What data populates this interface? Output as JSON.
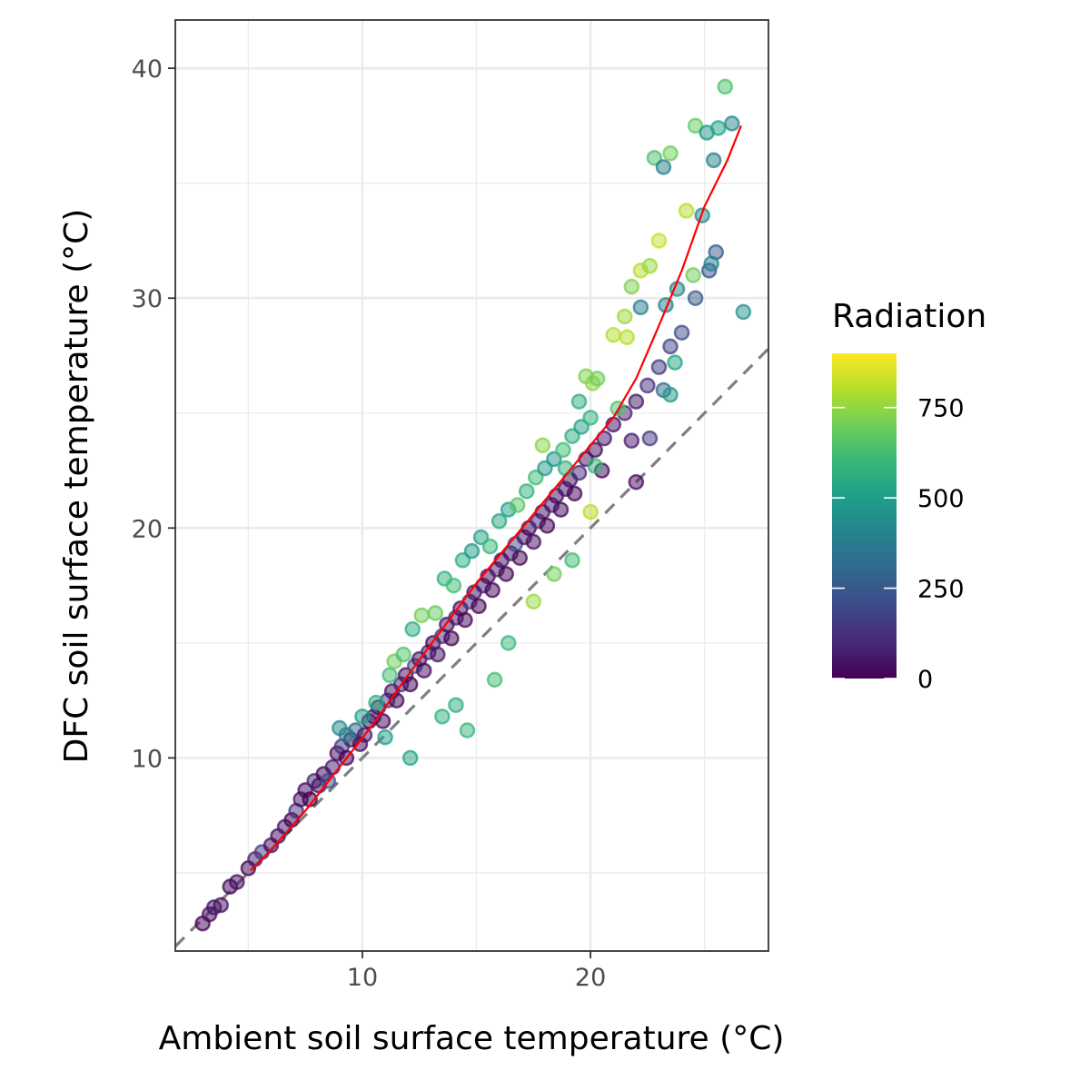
{
  "chart_data": {
    "type": "scatter",
    "title": "",
    "xlabel": "Ambient soil surface temperature (°C)",
    "ylabel": "DFC soil surface temperature (°C)",
    "xlim": [
      1.8,
      27.8
    ],
    "ylim": [
      1.6,
      42.1
    ],
    "x_ticks": [
      10,
      20
    ],
    "y_ticks": [
      10,
      20,
      30,
      40
    ],
    "grid": true,
    "reference_line": {
      "type": "y = x",
      "style": "dashed",
      "color": "#808080"
    },
    "fit_line": {
      "color": "#ff0000",
      "points": [
        [
          5.1,
          5.1
        ],
        [
          6.0,
          6.0
        ],
        [
          7.5,
          7.7
        ],
        [
          9.0,
          9.6
        ],
        [
          10.5,
          11.5
        ],
        [
          12.0,
          13.6
        ],
        [
          13.5,
          15.6
        ],
        [
          15.0,
          17.6
        ],
        [
          16.5,
          19.4
        ],
        [
          18.0,
          21.2
        ],
        [
          19.5,
          23.0
        ],
        [
          21.0,
          24.8
        ],
        [
          22.0,
          26.5
        ],
        [
          23.0,
          28.8
        ],
        [
          24.0,
          31.2
        ],
        [
          25.0,
          34.0
        ],
        [
          26.0,
          36.0
        ],
        [
          26.6,
          37.5
        ]
      ]
    },
    "legend": {
      "title": "Radiation",
      "position": "right",
      "type": "colorbar",
      "range": [
        0,
        900
      ],
      "ticks": [
        "0",
        "250",
        "500",
        "750"
      ],
      "tick_values": [
        0,
        250,
        500,
        750
      ],
      "colormap": "viridis"
    },
    "points": [
      [
        3.0,
        2.8,
        0
      ],
      [
        3.3,
        3.2,
        20
      ],
      [
        3.5,
        3.5,
        60
      ],
      [
        3.8,
        3.6,
        40
      ],
      [
        4.2,
        4.4,
        10
      ],
      [
        4.5,
        4.6,
        30
      ],
      [
        5.0,
        5.2,
        0
      ],
      [
        5.3,
        5.6,
        80
      ],
      [
        5.6,
        5.9,
        150
      ],
      [
        6.0,
        6.2,
        40
      ],
      [
        6.3,
        6.6,
        20
      ],
      [
        6.6,
        7.0,
        60
      ],
      [
        6.9,
        7.3,
        0
      ],
      [
        7.1,
        7.7,
        120
      ],
      [
        7.3,
        8.2,
        40
      ],
      [
        7.5,
        8.6,
        20
      ],
      [
        7.7,
        8.2,
        0
      ],
      [
        7.9,
        9.0,
        90
      ],
      [
        8.1,
        8.8,
        30
      ],
      [
        8.3,
        9.3,
        10
      ],
      [
        8.5,
        9.0,
        200
      ],
      [
        8.7,
        9.6,
        60
      ],
      [
        8.9,
        10.2,
        20
      ],
      [
        9.1,
        10.5,
        130
      ],
      [
        9.3,
        10.0,
        0
      ],
      [
        9.5,
        10.8,
        50
      ],
      [
        9.7,
        11.2,
        300
      ],
      [
        9.9,
        10.6,
        20
      ],
      [
        10.1,
        11.0,
        60
      ],
      [
        10.3,
        11.6,
        10
      ],
      [
        10.5,
        11.8,
        80
      ],
      [
        10.7,
        12.2,
        30
      ],
      [
        10.9,
        11.6,
        0
      ],
      [
        11.1,
        12.5,
        160
      ],
      [
        11.3,
        12.9,
        40
      ],
      [
        11.5,
        12.5,
        10
      ],
      [
        11.7,
        13.2,
        100
      ],
      [
        11.9,
        13.6,
        30
      ],
      [
        12.1,
        13.2,
        0
      ],
      [
        12.3,
        14.0,
        220
      ],
      [
        12.5,
        14.3,
        50
      ],
      [
        12.7,
        13.8,
        20
      ],
      [
        12.9,
        14.6,
        80
      ],
      [
        13.1,
        15.0,
        10
      ],
      [
        13.3,
        14.5,
        40
      ],
      [
        13.5,
        15.3,
        120
      ],
      [
        13.7,
        15.8,
        30
      ],
      [
        13.9,
        15.2,
        0
      ],
      [
        14.1,
        16.1,
        70
      ],
      [
        14.3,
        16.5,
        20
      ],
      [
        14.5,
        16.0,
        10
      ],
      [
        14.7,
        16.8,
        140
      ],
      [
        14.9,
        17.2,
        40
      ],
      [
        15.1,
        16.6,
        0
      ],
      [
        15.3,
        17.5,
        60
      ],
      [
        15.5,
        17.9,
        20
      ],
      [
        15.7,
        17.3,
        10
      ],
      [
        15.9,
        18.2,
        90
      ],
      [
        16.1,
        18.6,
        30
      ],
      [
        16.3,
        18.0,
        0
      ],
      [
        16.5,
        18.9,
        50
      ],
      [
        16.7,
        19.3,
        200
      ],
      [
        16.9,
        18.7,
        20
      ],
      [
        17.1,
        19.6,
        60
      ],
      [
        17.3,
        20.0,
        10
      ],
      [
        17.5,
        19.4,
        30
      ],
      [
        17.7,
        20.3,
        120
      ],
      [
        17.9,
        20.7,
        40
      ],
      [
        18.1,
        20.1,
        0
      ],
      [
        18.3,
        21.0,
        80
      ],
      [
        18.5,
        21.4,
        20
      ],
      [
        18.7,
        20.8,
        10
      ],
      [
        18.9,
        21.7,
        60
      ],
      [
        19.1,
        22.1,
        30
      ],
      [
        19.3,
        21.5,
        0
      ],
      [
        19.5,
        22.4,
        100
      ],
      [
        19.8,
        23.0,
        40
      ],
      [
        20.2,
        23.4,
        20
      ],
      [
        20.6,
        23.9,
        60
      ],
      [
        21.0,
        24.5,
        30
      ],
      [
        21.5,
        25.0,
        80
      ],
      [
        22.0,
        25.5,
        50
      ],
      [
        22.5,
        26.2,
        120
      ],
      [
        23.0,
        27.0,
        150
      ],
      [
        23.5,
        27.9,
        180
      ],
      [
        24.0,
        28.5,
        200
      ],
      [
        24.6,
        30.0,
        250
      ],
      [
        25.2,
        31.2,
        230
      ],
      [
        25.5,
        32.0,
        260
      ],
      [
        22.0,
        22.0,
        20
      ],
      [
        20.5,
        22.5,
        10
      ],
      [
        21.8,
        23.8,
        60
      ],
      [
        23.2,
        26.0,
        300
      ],
      [
        9.0,
        11.3,
        420
      ],
      [
        9.3,
        11.0,
        380
      ],
      [
        10.0,
        11.8,
        500
      ],
      [
        10.6,
        12.4,
        560
      ],
      [
        11.2,
        13.6,
        620
      ],
      [
        11.4,
        14.2,
        700
      ],
      [
        11.8,
        14.5,
        650
      ],
      [
        12.2,
        15.6,
        560
      ],
      [
        12.6,
        16.2,
        700
      ],
      [
        13.2,
        16.3,
        680
      ],
      [
        13.6,
        17.8,
        580
      ],
      [
        14.0,
        17.5,
        620
      ],
      [
        14.4,
        18.6,
        560
      ],
      [
        14.8,
        19.0,
        480
      ],
      [
        15.2,
        19.6,
        520
      ],
      [
        15.6,
        19.2,
        600
      ],
      [
        16.0,
        20.3,
        540
      ],
      [
        16.4,
        20.8,
        500
      ],
      [
        16.8,
        21.0,
        660
      ],
      [
        17.2,
        21.6,
        580
      ],
      [
        17.6,
        22.2,
        620
      ],
      [
        18.0,
        22.6,
        500
      ],
      [
        18.4,
        23.0,
        460
      ],
      [
        18.8,
        23.4,
        620
      ],
      [
        19.2,
        24.0,
        560
      ],
      [
        19.6,
        24.4,
        520
      ],
      [
        20.0,
        24.8,
        580
      ],
      [
        19.8,
        26.6,
        720
      ],
      [
        20.1,
        26.3,
        750
      ],
      [
        20.3,
        26.5,
        700
      ],
      [
        21.0,
        28.4,
        800
      ],
      [
        21.5,
        29.2,
        760
      ],
      [
        21.8,
        30.5,
        720
      ],
      [
        22.2,
        31.2,
        800
      ],
      [
        22.6,
        31.4,
        760
      ],
      [
        23.0,
        32.5,
        820
      ],
      [
        24.2,
        33.8,
        800
      ],
      [
        22.8,
        36.1,
        640
      ],
      [
        23.2,
        35.7,
        380
      ],
      [
        23.5,
        36.3,
        700
      ],
      [
        24.6,
        37.5,
        680
      ],
      [
        25.1,
        37.2,
        480
      ],
      [
        25.6,
        37.4,
        520
      ],
      [
        25.9,
        39.2,
        640
      ],
      [
        26.2,
        37.6,
        420
      ],
      [
        25.4,
        36.0,
        400
      ],
      [
        24.9,
        33.6,
        420
      ],
      [
        25.3,
        31.5,
        400
      ],
      [
        24.5,
        31.0,
        700
      ],
      [
        23.8,
        30.4,
        420
      ],
      [
        23.3,
        29.7,
        400
      ],
      [
        22.2,
        29.6,
        380
      ],
      [
        21.6,
        28.3,
        800
      ],
      [
        15.8,
        13.4,
        620
      ],
      [
        16.4,
        15.0,
        600
      ],
      [
        14.1,
        12.3,
        560
      ],
      [
        13.5,
        11.8,
        580
      ],
      [
        12.1,
        10.0,
        520
      ],
      [
        11.0,
        10.9,
        500
      ],
      [
        14.6,
        11.2,
        600
      ],
      [
        17.5,
        16.8,
        760
      ],
      [
        18.4,
        18.0,
        700
      ],
      [
        19.2,
        18.6,
        620
      ],
      [
        20.0,
        20.7,
        800
      ],
      [
        20.2,
        22.7,
        600
      ],
      [
        17.9,
        23.6,
        740
      ],
      [
        18.9,
        22.6,
        580
      ],
      [
        26.7,
        29.4,
        450
      ],
      [
        19.5,
        25.5,
        560
      ],
      [
        21.2,
        25.2,
        650
      ],
      [
        22.6,
        23.9,
        150
      ],
      [
        23.7,
        27.2,
        520
      ],
      [
        23.5,
        25.8,
        480
      ]
    ]
  }
}
